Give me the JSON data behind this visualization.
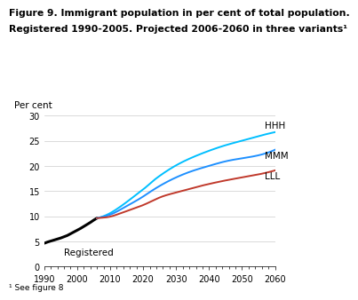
{
  "title_line1": "Figure 9. Immigrant population in per cent of total population.",
  "title_line2": "Registered 1990-2005. Projected 2006-2060 in three variants¹",
  "ylabel": "Per cent",
  "footnote": "¹ See figure 8",
  "xlim": [
    1990,
    2060
  ],
  "ylim": [
    0,
    30
  ],
  "xticks": [
    1990,
    2000,
    2010,
    2020,
    2030,
    2040,
    2050,
    2060
  ],
  "yticks": [
    0,
    5,
    10,
    15,
    20,
    25,
    30
  ],
  "registered": {
    "years": [
      1990,
      1991,
      1992,
      1993,
      1994,
      1995,
      1996,
      1997,
      1998,
      1999,
      2000,
      2001,
      2002,
      2003,
      2004,
      2005,
      2006
    ],
    "values": [
      4.6,
      4.85,
      5.05,
      5.25,
      5.45,
      5.65,
      5.9,
      6.15,
      6.5,
      6.85,
      7.2,
      7.55,
      7.95,
      8.35,
      8.75,
      9.2,
      9.6
    ],
    "color": "#000000",
    "label": "Registered",
    "linewidth": 2.2
  },
  "HHH": {
    "years": [
      2006,
      2008,
      2010,
      2012,
      2015,
      2018,
      2020,
      2023,
      2025,
      2030,
      2035,
      2040,
      2045,
      2050,
      2055,
      2060
    ],
    "values": [
      9.6,
      10.0,
      10.6,
      11.4,
      12.8,
      14.3,
      15.3,
      17.0,
      18.0,
      20.1,
      21.7,
      23.0,
      24.1,
      25.0,
      25.9,
      26.7
    ],
    "color": "#00BFFF",
    "label": "HHH",
    "linewidth": 1.4
  },
  "MMM": {
    "years": [
      2006,
      2008,
      2010,
      2012,
      2015,
      2018,
      2020,
      2023,
      2025,
      2030,
      2035,
      2040,
      2045,
      2050,
      2055,
      2060
    ],
    "values": [
      9.6,
      9.9,
      10.3,
      10.9,
      12.0,
      13.1,
      13.9,
      15.2,
      16.0,
      17.7,
      19.0,
      20.0,
      20.9,
      21.5,
      22.1,
      23.2
    ],
    "color": "#1E90FF",
    "label": "MMM",
    "linewidth": 1.4
  },
  "LLL": {
    "years": [
      2006,
      2008,
      2010,
      2012,
      2015,
      2018,
      2020,
      2023,
      2025,
      2030,
      2035,
      2040,
      2045,
      2050,
      2055,
      2060
    ],
    "values": [
      9.6,
      9.7,
      9.9,
      10.3,
      11.0,
      11.7,
      12.2,
      13.1,
      13.7,
      14.7,
      15.6,
      16.4,
      17.1,
      17.7,
      18.3,
      19.1
    ],
    "color": "#C0392B",
    "label": "LLL",
    "linewidth": 1.4
  },
  "title_fontsize": 7.8,
  "axis_label_fontsize": 7.5,
  "tick_fontsize": 7.0,
  "annotation_fontsize": 7.5
}
